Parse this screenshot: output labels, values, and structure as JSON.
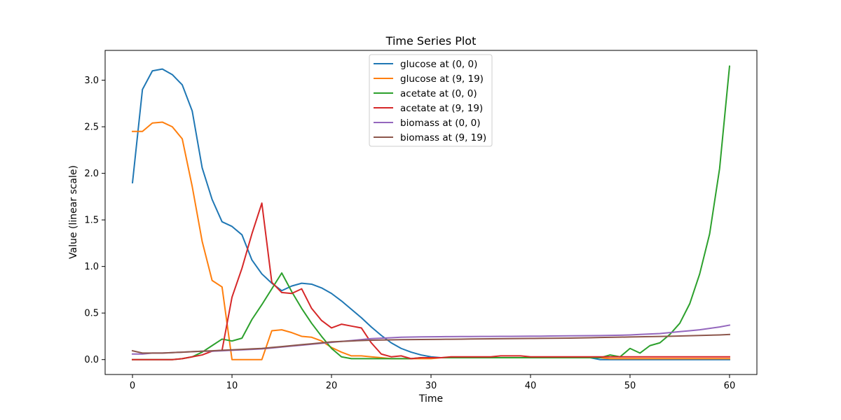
{
  "chart_data": {
    "type": "line",
    "title": "Time Series Plot",
    "xlabel": "Time",
    "ylabel": "Value (linear scale)",
    "xlim": [
      -2.75,
      62.75
    ],
    "ylim": [
      -0.16,
      3.32
    ],
    "xticks": [
      0,
      10,
      20,
      30,
      40,
      50,
      60
    ],
    "yticks": [
      0.0,
      0.5,
      1.0,
      1.5,
      2.0,
      2.5,
      3.0
    ],
    "ytick_labels": [
      "0.0",
      "0.5",
      "1.0",
      "1.5",
      "2.0",
      "2.5",
      "3.0"
    ],
    "grid": false,
    "legend_position": "upper center",
    "x": [
      0,
      1,
      2,
      3,
      4,
      5,
      6,
      7,
      8,
      9,
      10,
      11,
      12,
      13,
      14,
      15,
      16,
      17,
      18,
      19,
      20,
      21,
      22,
      23,
      24,
      25,
      26,
      27,
      28,
      29,
      30,
      31,
      32,
      33,
      34,
      35,
      36,
      37,
      38,
      39,
      40,
      41,
      42,
      43,
      44,
      45,
      46,
      47,
      48,
      49,
      50,
      51,
      52,
      53,
      54,
      55,
      56,
      57,
      58,
      59,
      60
    ],
    "series": [
      {
        "name": "glucose at (0, 0)",
        "color": "#1f77b4",
        "values": [
          1.9,
          2.9,
          3.1,
          3.12,
          3.06,
          2.95,
          2.67,
          2.06,
          1.72,
          1.48,
          1.43,
          1.34,
          1.07,
          0.92,
          0.82,
          0.74,
          0.79,
          0.82,
          0.81,
          0.77,
          0.71,
          0.63,
          0.54,
          0.45,
          0.35,
          0.26,
          0.18,
          0.12,
          0.08,
          0.05,
          0.03,
          0.02,
          0.02,
          0.02,
          0.02,
          0.02,
          0.02,
          0.02,
          0.02,
          0.02,
          0.02,
          0.02,
          0.02,
          0.02,
          0.02,
          0.02,
          0.02,
          0.0,
          0.0,
          0.0,
          0.0,
          0.0,
          0.0,
          0.0,
          0.0,
          0.0,
          0.0,
          0.0,
          0.0,
          0.0,
          0.0
        ]
      },
      {
        "name": "glucose at (9, 19)",
        "color": "#ff7f0e",
        "values": [
          2.45,
          2.45,
          2.54,
          2.55,
          2.5,
          2.37,
          1.86,
          1.27,
          0.85,
          0.78,
          0.0,
          0.0,
          0.0,
          0.0,
          0.31,
          0.32,
          0.29,
          0.25,
          0.24,
          0.2,
          0.13,
          0.08,
          0.04,
          0.04,
          0.03,
          0.02,
          0.01,
          0.01,
          0.01,
          0.01,
          0.01,
          0.02,
          0.02,
          0.02,
          0.02,
          0.02,
          0.02,
          0.02,
          0.02,
          0.02,
          0.02,
          0.02,
          0.02,
          0.02,
          0.02,
          0.02,
          0.02,
          0.02,
          0.01,
          0.01,
          0.01,
          0.01,
          0.01,
          0.01,
          0.01,
          0.01,
          0.01,
          0.01,
          0.01,
          0.01,
          0.01
        ]
      },
      {
        "name": "acetate at (0, 0)",
        "color": "#2ca02c",
        "values": [
          0.0,
          0.0,
          0.0,
          0.0,
          0.0,
          0.01,
          0.03,
          0.08,
          0.15,
          0.22,
          0.2,
          0.23,
          0.43,
          0.59,
          0.76,
          0.93,
          0.73,
          0.55,
          0.39,
          0.25,
          0.12,
          0.03,
          0.01,
          0.01,
          0.01,
          0.01,
          0.01,
          0.01,
          0.01,
          0.02,
          0.02,
          0.02,
          0.02,
          0.02,
          0.02,
          0.02,
          0.02,
          0.02,
          0.02,
          0.02,
          0.02,
          0.02,
          0.02,
          0.02,
          0.02,
          0.02,
          0.02,
          0.02,
          0.05,
          0.03,
          0.12,
          0.07,
          0.15,
          0.18,
          0.27,
          0.39,
          0.6,
          0.92,
          1.35,
          2.05,
          3.15
        ]
      },
      {
        "name": "acetate at (9, 19)",
        "color": "#d62728",
        "values": [
          0.0,
          0.0,
          0.0,
          0.0,
          0.0,
          0.01,
          0.03,
          0.05,
          0.09,
          0.1,
          0.67,
          0.98,
          1.35,
          1.68,
          0.83,
          0.72,
          0.71,
          0.76,
          0.55,
          0.42,
          0.34,
          0.38,
          0.36,
          0.34,
          0.18,
          0.06,
          0.03,
          0.04,
          0.01,
          0.02,
          0.02,
          0.02,
          0.03,
          0.03,
          0.03,
          0.03,
          0.03,
          0.04,
          0.04,
          0.04,
          0.03,
          0.03,
          0.03,
          0.03,
          0.03,
          0.03,
          0.03,
          0.03,
          0.03,
          0.03,
          0.03,
          0.03,
          0.03,
          0.03,
          0.03,
          0.03,
          0.03,
          0.03,
          0.03,
          0.03,
          0.03
        ]
      },
      {
        "name": "biomass at (0, 0)",
        "color": "#9467bd",
        "values": [
          0.06,
          0.06,
          0.07,
          0.07,
          0.075,
          0.08,
          0.085,
          0.09,
          0.09,
          0.095,
          0.1,
          0.105,
          0.11,
          0.115,
          0.125,
          0.135,
          0.145,
          0.155,
          0.165,
          0.175,
          0.185,
          0.195,
          0.205,
          0.215,
          0.225,
          0.23,
          0.235,
          0.24,
          0.242,
          0.244,
          0.245,
          0.246,
          0.247,
          0.248,
          0.248,
          0.249,
          0.249,
          0.25,
          0.25,
          0.251,
          0.252,
          0.252,
          0.253,
          0.254,
          0.255,
          0.256,
          0.257,
          0.258,
          0.26,
          0.262,
          0.265,
          0.27,
          0.275,
          0.28,
          0.29,
          0.3,
          0.31,
          0.32,
          0.335,
          0.35,
          0.37
        ]
      },
      {
        "name": "biomass at (9, 19)",
        "color": "#8c564b",
        "values": [
          0.095,
          0.07,
          0.07,
          0.07,
          0.075,
          0.08,
          0.085,
          0.09,
          0.095,
          0.1,
          0.105,
          0.11,
          0.115,
          0.12,
          0.13,
          0.14,
          0.15,
          0.16,
          0.17,
          0.18,
          0.19,
          0.195,
          0.2,
          0.205,
          0.208,
          0.21,
          0.212,
          0.214,
          0.215,
          0.216,
          0.217,
          0.218,
          0.219,
          0.22,
          0.221,
          0.222,
          0.223,
          0.224,
          0.225,
          0.226,
          0.227,
          0.228,
          0.229,
          0.23,
          0.231,
          0.233,
          0.235,
          0.237,
          0.239,
          0.241,
          0.243,
          0.245,
          0.247,
          0.249,
          0.251,
          0.253,
          0.256,
          0.259,
          0.262,
          0.265,
          0.27
        ]
      }
    ]
  }
}
